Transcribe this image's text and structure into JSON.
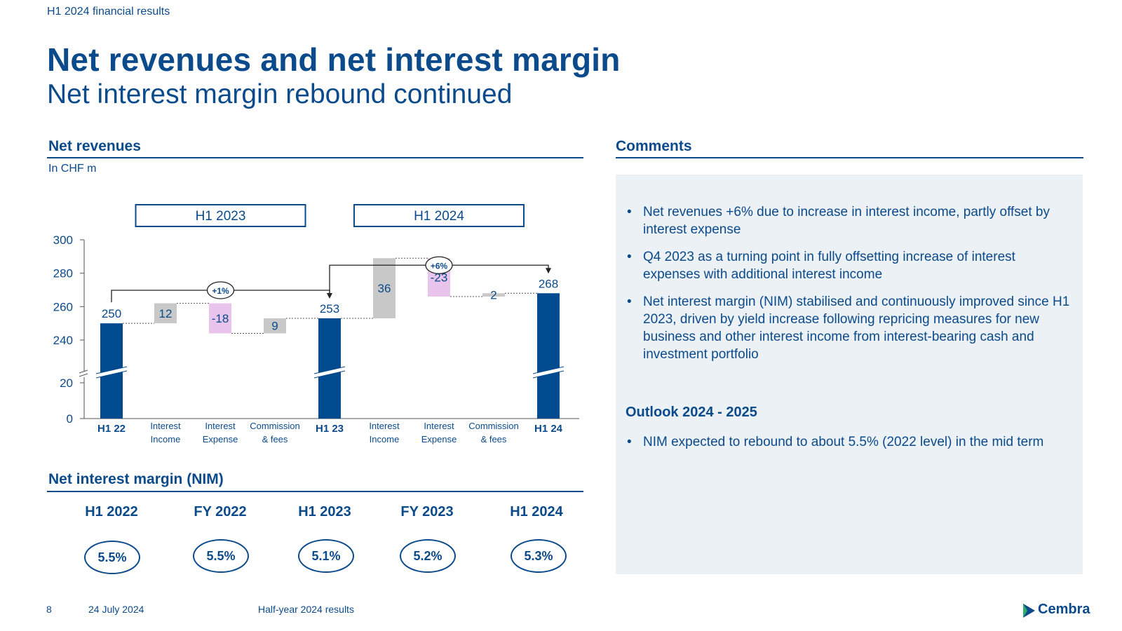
{
  "header": {
    "kicker": "H1 2024 financial results",
    "title": "Net revenues and net interest margin",
    "subtitle": "Net interest margin rebound continued"
  },
  "net_revenues": {
    "heading": "Net revenues",
    "unit": "In CHF m"
  },
  "chart_data": {
    "type": "bar",
    "subtype": "waterfall",
    "title": "",
    "xlabel": "",
    "ylabel": "",
    "y_ticks": [
      0,
      20,
      240,
      260,
      280,
      300
    ],
    "ylim": [
      0,
      300
    ],
    "axis_break": "between 20 and 240",
    "groups": [
      "H1 2023",
      "H1 2024"
    ],
    "categories": [
      "H1 22",
      "Interest Income",
      "Interest Expense",
      "Commission & fees",
      "H1 23",
      "Interest Income",
      "Interest Expense",
      "Commission & fees",
      "H1 24"
    ],
    "category_lines": [
      [
        "H1 22"
      ],
      [
        "Interest",
        "Income"
      ],
      [
        "Interest",
        "Expense"
      ],
      [
        "Commission",
        "& fees"
      ],
      [
        "H1 23"
      ],
      [
        "Interest",
        "Income"
      ],
      [
        "Interest",
        "Expense"
      ],
      [
        "Commission",
        "& fees"
      ],
      [
        "H1 24"
      ]
    ],
    "bars": [
      {
        "kind": "total",
        "value": 250,
        "label": "250"
      },
      {
        "kind": "delta",
        "value": 12,
        "label": "12"
      },
      {
        "kind": "delta",
        "value": -18,
        "label": "-18"
      },
      {
        "kind": "delta",
        "value": 9,
        "label": "9"
      },
      {
        "kind": "total",
        "value": 253,
        "label": "253"
      },
      {
        "kind": "delta",
        "value": 36,
        "label": "36"
      },
      {
        "kind": "delta",
        "value": -23,
        "label": "-23"
      },
      {
        "kind": "delta",
        "value": 2,
        "label": "2"
      },
      {
        "kind": "total",
        "value": 268,
        "label": "268"
      }
    ],
    "growth_annotations": [
      {
        "from": "H1 22",
        "to": "H1 23",
        "label": "+1%"
      },
      {
        "from": "H1 23",
        "to": "H1 24",
        "label": "+6%"
      }
    ],
    "colors": {
      "total": "#004a8f",
      "income": "#c8c8c8",
      "expense": "#e8c4ec",
      "fees": "#c8c8c8"
    },
    "grid": false,
    "legend": "none"
  },
  "nim": {
    "heading": "Net interest margin (NIM)",
    "items": [
      {
        "period": "H1 2022",
        "value": "5.5%"
      },
      {
        "period": "FY 2022",
        "value": "5.5%"
      },
      {
        "period": "H1 2023",
        "value": "5.1%"
      },
      {
        "period": "FY 2023",
        "value": "5.2%"
      },
      {
        "period": "H1 2024",
        "value": "5.3%"
      }
    ]
  },
  "comments": {
    "heading": "Comments",
    "bullets": [
      "Net revenues +6% due to increase in interest income, partly offset by interest expense",
      "Q4 2023 as a turning point in fully offsetting increase of interest expenses with additional interest income",
      "Net interest margin (NIM) stabilised and continuously improved since H1 2023, driven by yield increase following repricing measures for new business and other interest income from interest-bearing cash and investment portfolio"
    ],
    "outlook_heading": "Outlook 2024 - 2025",
    "outlook_bullets": [
      "NIM expected to rebound to about 5.5% (2022 level) in the mid term"
    ]
  },
  "footer": {
    "page_number": "8",
    "date": "24 July 2024",
    "doc_name": "Half-year 2024 results",
    "logo_text": "Cembra",
    "logo_icon": "cembra-logo-icon"
  }
}
